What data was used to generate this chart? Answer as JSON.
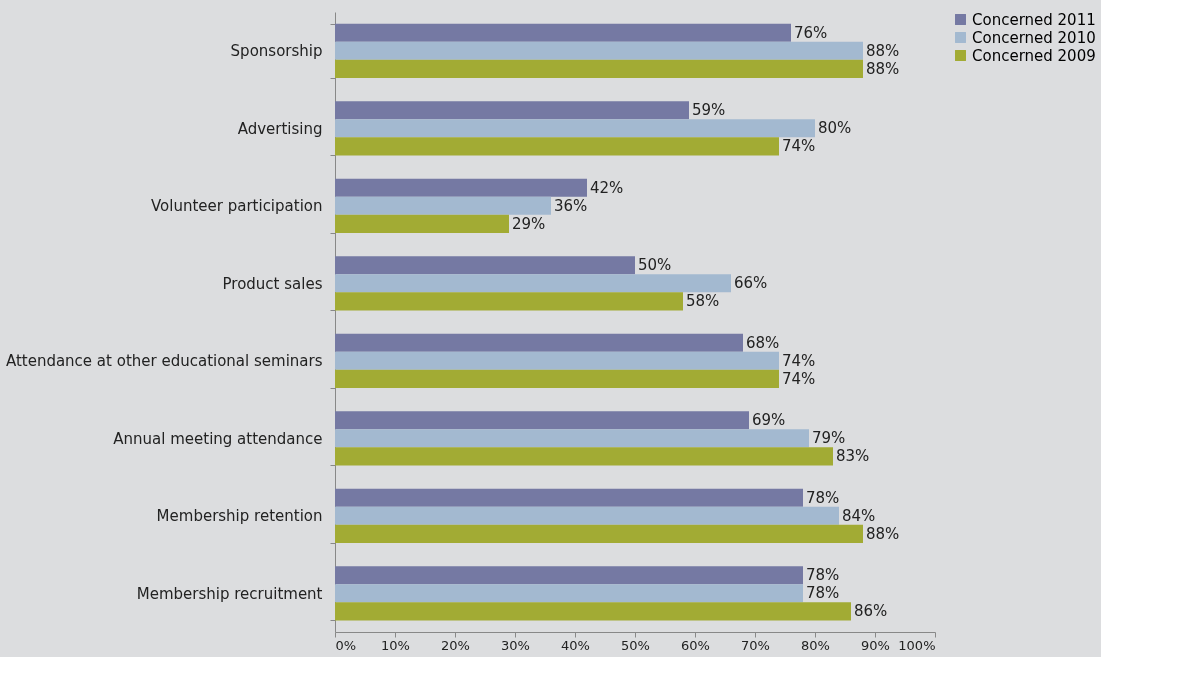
{
  "chart_data": {
    "type": "bar",
    "orientation": "horizontal",
    "categories": [
      "Sponsorship",
      "Advertising",
      "Volunteer participation",
      "Product sales",
      "Attendance at other educational seminars",
      "Annual meeting attendance",
      "Membership retention",
      "Membership recruitment"
    ],
    "series": [
      {
        "name": "Concerned 2011",
        "color": "#7579a3",
        "values": [
          76,
          59,
          42,
          50,
          68,
          69,
          78,
          78
        ],
        "value_labels": [
          "76%",
          "59%",
          "42%",
          "50%",
          "68%",
          "69%",
          "78%",
          "78%"
        ]
      },
      {
        "name": "Concerned 2010",
        "color": "#a3b9d0",
        "values": [
          88,
          80,
          36,
          66,
          74,
          79,
          84,
          78
        ],
        "value_labels": [
          "88%",
          "80%",
          "36%",
          "66%",
          "74%",
          "79%",
          "84%",
          "78%"
        ]
      },
      {
        "name": "Concerned 2009",
        "color": "#a2ab34",
        "values": [
          88,
          74,
          29,
          58,
          74,
          83,
          88,
          86
        ],
        "value_labels": [
          "88%",
          "74%",
          "29%",
          "58%",
          "74%",
          "83%",
          "88%",
          "86%"
        ]
      }
    ],
    "xlim": [
      0,
      100
    ],
    "xticks": [
      {
        "value": 0,
        "label": "0%"
      },
      {
        "value": 10,
        "label": "10%"
      },
      {
        "value": 20,
        "label": "20%"
      },
      {
        "value": 30,
        "label": "30%"
      },
      {
        "value": 40,
        "label": "40%"
      },
      {
        "value": 50,
        "label": "50%"
      },
      {
        "value": 60,
        "label": "60%"
      },
      {
        "value": 70,
        "label": "70%"
      },
      {
        "value": 80,
        "label": "80%"
      },
      {
        "value": 90,
        "label": "90%"
      },
      {
        "value": 100,
        "label": "100%"
      }
    ],
    "legend": "right"
  }
}
